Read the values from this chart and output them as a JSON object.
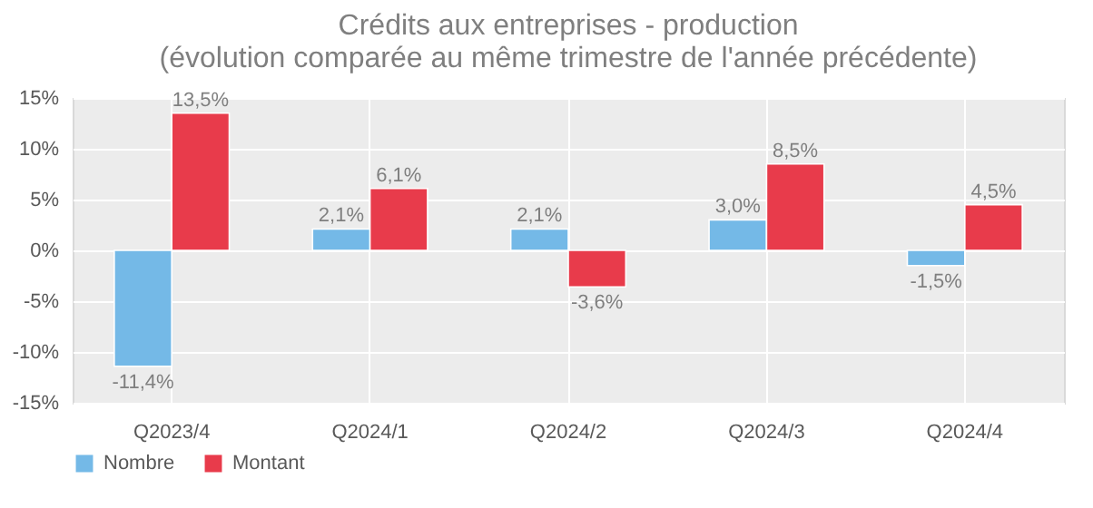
{
  "chart_data": {
    "type": "bar",
    "title": "Crédits aux entreprises - production",
    "subtitle": "(évolution comparée au même trimestre de l'année précédente)",
    "categories": [
      "Q2023/4",
      "Q2024/1",
      "Q2024/2",
      "Q2024/3",
      "Q2024/4"
    ],
    "series": [
      {
        "name": "Nombre",
        "color": "#74b9e7",
        "values": [
          -11.4,
          2.1,
          2.1,
          3.0,
          -1.5
        ],
        "value_labels": [
          "-11,4%",
          "2,1%",
          "2,1%",
          "3,0%",
          "-1,5%"
        ]
      },
      {
        "name": "Montant",
        "color": "#e83b4b",
        "values": [
          13.5,
          6.1,
          -3.6,
          8.5,
          4.5
        ],
        "value_labels": [
          "13,5%",
          "6,1%",
          "-3,6%",
          "8,5%",
          "4,5%"
        ]
      }
    ],
    "ylim": [
      -15,
      15
    ],
    "yticks": [
      {
        "value": -15,
        "label": "-15%"
      },
      {
        "value": -10,
        "label": "-10%"
      },
      {
        "value": -5,
        "label": "-5%"
      },
      {
        "value": 0,
        "label": "0%"
      },
      {
        "value": 5,
        "label": "5%"
      },
      {
        "value": 10,
        "label": "10%"
      },
      {
        "value": 15,
        "label": "15%"
      }
    ],
    "grid": true,
    "legend": "bottom"
  }
}
